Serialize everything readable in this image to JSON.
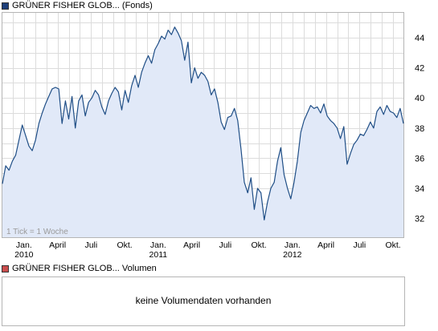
{
  "price_legend": {
    "name": "GRÜNER FISHER GLOB...",
    "suffix": "(Fonds)",
    "color": "#1f3f7a"
  },
  "volume_legend": {
    "name": "GRÜNER FISHER GLOB...",
    "suffix": "Volumen",
    "color": "#c94d4d"
  },
  "tick_note": "1 Tick = 1 Woche",
  "volume_message": "keine Volumendaten vorhanden",
  "colors": {
    "line": "#1f4e86",
    "fill": "#e1e9f8",
    "grid": "#dcdcdc",
    "border": "#b5b5b5"
  },
  "chart_data": {
    "type": "area",
    "x_unit": "week",
    "x_start": "2009-11",
    "x_end": "2012-11",
    "ylim": [
      30.7,
      45.7
    ],
    "y_ticks": [
      32,
      34,
      36,
      38,
      40,
      42,
      44
    ],
    "x_ticks": [
      {
        "label": "Jan.",
        "year": "2010",
        "x": "2010-01"
      },
      {
        "label": "April",
        "x": "2010-04"
      },
      {
        "label": "Juli",
        "x": "2010-07"
      },
      {
        "label": "Okt.",
        "x": "2010-10"
      },
      {
        "label": "Jan.",
        "year": "2011",
        "x": "2011-01"
      },
      {
        "label": "April",
        "x": "2011-04"
      },
      {
        "label": "Juli",
        "x": "2011-07"
      },
      {
        "label": "Okt.",
        "x": "2011-10"
      },
      {
        "label": "Jan.",
        "year": "2012",
        "x": "2012-01"
      },
      {
        "label": "April",
        "x": "2012-04"
      },
      {
        "label": "Juli",
        "x": "2012-07"
      },
      {
        "label": "Okt.",
        "x": "2012-10"
      }
    ],
    "grid": true,
    "values": [
      34.3,
      35.5,
      35.2,
      35.8,
      36.2,
      37.2,
      38.2,
      37.5,
      36.8,
      36.5,
      37.2,
      38.3,
      39.0,
      39.6,
      40.1,
      40.6,
      40.7,
      40.6,
      38.3,
      39.8,
      38.6,
      40.1,
      38.0,
      39.8,
      40.2,
      38.8,
      39.7,
      40.0,
      40.5,
      40.2,
      39.4,
      38.9,
      39.8,
      40.3,
      40.7,
      40.4,
      39.2,
      40.5,
      39.7,
      40.8,
      41.5,
      40.7,
      41.7,
      42.3,
      42.8,
      42.3,
      43.2,
      43.6,
      44.1,
      43.9,
      44.5,
      44.2,
      44.7,
      44.3,
      43.8,
      42.5,
      43.7,
      41.0,
      42.0,
      41.3,
      41.7,
      41.5,
      41.1,
      40.2,
      40.6,
      39.7,
      38.4,
      37.9,
      38.7,
      38.8,
      39.3,
      38.5,
      36.6,
      34.4,
      33.7,
      34.7,
      32.6,
      34.0,
      33.7,
      31.9,
      33.1,
      34.0,
      34.4,
      35.8,
      36.7,
      34.9,
      34.0,
      33.3,
      34.4,
      35.8,
      37.7,
      38.5,
      39.0,
      39.5,
      39.3,
      39.4,
      39.0,
      39.6,
      38.8,
      38.5,
      38.3,
      38.0,
      37.3,
      38.1,
      35.6,
      36.3,
      36.9,
      37.2,
      37.6,
      37.5,
      37.9,
      38.4,
      38.0,
      39.1,
      39.4,
      38.9,
      39.5,
      39.1,
      39.0,
      38.7,
      39.3,
      38.3
    ]
  }
}
